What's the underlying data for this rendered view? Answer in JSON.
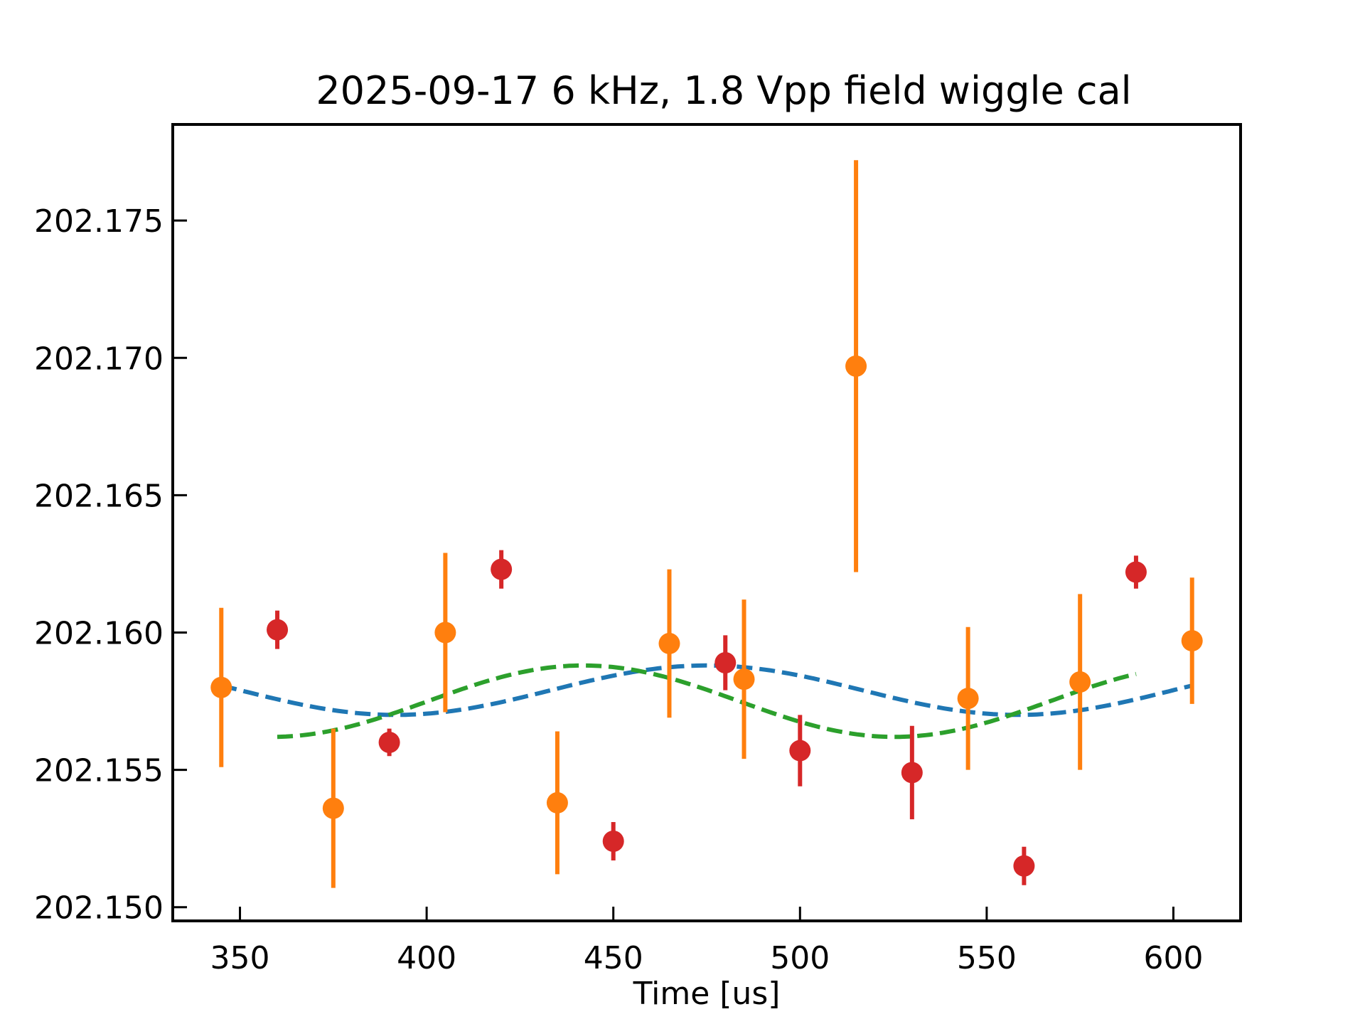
{
  "chart_data": {
    "type": "scatter",
    "title": "2025-09-17 6 kHz, 1.8 Vpp field wiggle cal",
    "xlabel": "Time [us]",
    "ylabel": "",
    "xlim": [
      332,
      618
    ],
    "ylim": [
      202.1495,
      202.1785
    ],
    "xticks": [
      350,
      400,
      450,
      500,
      550,
      600
    ],
    "xtick_labels": [
      "350",
      "400",
      "450",
      "500",
      "550",
      "600"
    ],
    "yticks": [
      202.15,
      202.155,
      202.16,
      202.165,
      202.17,
      202.175
    ],
    "ytick_labels": [
      "202.150",
      "202.155",
      "202.160",
      "202.165",
      "202.170",
      "202.175"
    ],
    "grid": false,
    "series": [
      {
        "color": "#ff7f0e",
        "marker": "circle-errorbar",
        "points": [
          {
            "x": 345,
            "y": 202.158,
            "err": 0.0029
          },
          {
            "x": 375,
            "y": 202.1536,
            "err": 0.0029
          },
          {
            "x": 405,
            "y": 202.16,
            "err": 0.0029
          },
          {
            "x": 435,
            "y": 202.1538,
            "err": 0.0026
          },
          {
            "x": 465,
            "y": 202.1596,
            "err": 0.0027
          },
          {
            "x": 485,
            "y": 202.1583,
            "err": 0.0029
          },
          {
            "x": 515,
            "y": 202.1697,
            "err": 0.0075
          },
          {
            "x": 545,
            "y": 202.1576,
            "err": 0.0026
          },
          {
            "x": 575,
            "y": 202.1582,
            "err": 0.0032
          },
          {
            "x": 605,
            "y": 202.1597,
            "err": 0.0023
          }
        ]
      },
      {
        "color": "#d62728",
        "marker": "circle-errorbar",
        "points": [
          {
            "x": 360,
            "y": 202.1601,
            "err": 0.0007
          },
          {
            "x": 390,
            "y": 202.156,
            "err": 0.0005
          },
          {
            "x": 420,
            "y": 202.1623,
            "err": 0.0007
          },
          {
            "x": 450,
            "y": 202.1524,
            "err": 0.0007
          },
          {
            "x": 480,
            "y": 202.1589,
            "err": 0.001
          },
          {
            "x": 500,
            "y": 202.1557,
            "err": 0.0013
          },
          {
            "x": 530,
            "y": 202.1549,
            "err": 0.0017
          },
          {
            "x": 560,
            "y": 202.1515,
            "err": 0.0007
          },
          {
            "x": 590,
            "y": 202.1622,
            "err": 0.0006
          }
        ]
      },
      {
        "color": "#1f77b4",
        "line": "dashed",
        "fit": {
          "x_start": 345,
          "x_end": 605,
          "offset": 202.1579,
          "amplitude": 0.0009,
          "frequency_khz": 6,
          "peak_at": 475
        }
      },
      {
        "color": "#2ca02c",
        "line": "dashed",
        "fit": {
          "x_start": 360,
          "x_end": 590,
          "offset": 202.1575,
          "amplitude": 0.0013,
          "frequency_khz": 6,
          "peak_at": 442
        }
      }
    ]
  }
}
